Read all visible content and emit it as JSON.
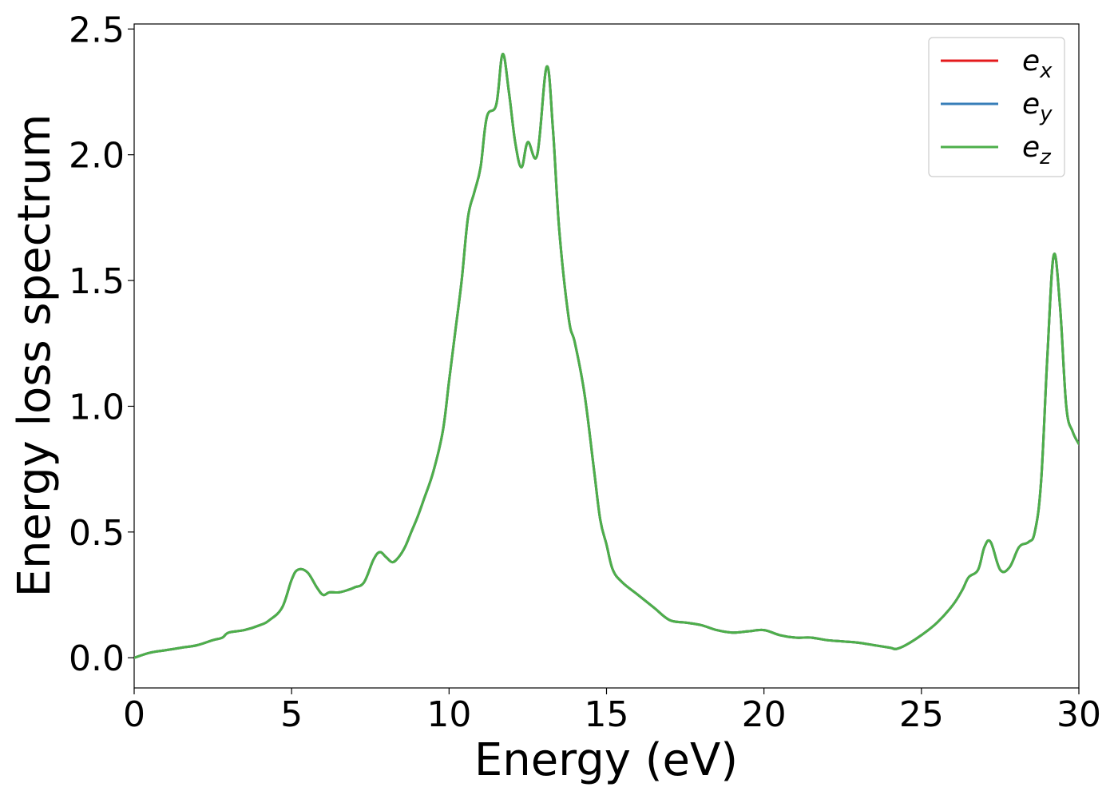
{
  "chart_data": {
    "type": "line",
    "title": "",
    "xlabel": "Energy (eV)",
    "ylabel": "Energy loss spectrum",
    "xlim": [
      0,
      30
    ],
    "ylim": [
      -0.12,
      2.52
    ],
    "xticks": [
      0,
      5,
      10,
      15,
      20,
      25,
      30
    ],
    "xtick_labels": [
      "0",
      "5",
      "10",
      "15",
      "20",
      "25",
      "30"
    ],
    "yticks": [
      0.0,
      0.5,
      1.0,
      1.5,
      2.0,
      2.5
    ],
    "ytick_labels": [
      "0.0",
      "0.5",
      "1.0",
      "1.5",
      "2.0",
      "2.5"
    ],
    "grid": false,
    "legend_position": "top-right",
    "x": [
      0,
      0.5,
      1,
      1.5,
      2,
      2.5,
      2.8,
      3,
      3.5,
      4,
      4.3,
      4.7,
      5,
      5.2,
      5.5,
      5.8,
      6,
      6.2,
      6.5,
      6.8,
      7,
      7.3,
      7.6,
      7.8,
      8,
      8.2,
      8.4,
      8.6,
      8.8,
      9,
      9.2,
      9.5,
      9.8,
      10,
      10.2,
      10.4,
      10.6,
      10.8,
      11,
      11.2,
      11.5,
      11.7,
      11.9,
      12.1,
      12.3,
      12.5,
      12.8,
      13.1,
      13.3,
      13.5,
      13.8,
      14,
      14.3,
      14.6,
      14.8,
      15,
      15.2,
      15.5,
      16,
      16.5,
      17,
      17.5,
      18,
      18.5,
      19,
      19.5,
      20,
      20.5,
      21,
      21.5,
      22,
      22.5,
      23,
      23.5,
      24,
      24.2,
      24.5,
      25,
      25.5,
      26,
      26.3,
      26.5,
      26.8,
      27,
      27.2,
      27.5,
      27.8,
      28.1,
      28.4,
      28.6,
      28.8,
      29,
      29.2,
      29.4,
      29.6,
      29.8,
      30
    ],
    "series": [
      {
        "name": "e_x",
        "color": "#e41a1c",
        "values": [
          0.0,
          0.02,
          0.03,
          0.04,
          0.05,
          0.07,
          0.08,
          0.1,
          0.11,
          0.13,
          0.15,
          0.2,
          0.31,
          0.35,
          0.34,
          0.28,
          0.25,
          0.26,
          0.26,
          0.27,
          0.28,
          0.3,
          0.39,
          0.42,
          0.4,
          0.38,
          0.4,
          0.44,
          0.5,
          0.56,
          0.63,
          0.74,
          0.9,
          1.1,
          1.3,
          1.5,
          1.75,
          1.85,
          1.95,
          2.15,
          2.2,
          2.4,
          2.25,
          2.05,
          1.95,
          2.05,
          2.0,
          2.35,
          2.1,
          1.7,
          1.35,
          1.25,
          1.05,
          0.75,
          0.55,
          0.45,
          0.35,
          0.3,
          0.25,
          0.2,
          0.15,
          0.14,
          0.13,
          0.11,
          0.1,
          0.105,
          0.11,
          0.09,
          0.08,
          0.08,
          0.07,
          0.065,
          0.06,
          0.05,
          0.04,
          0.035,
          0.05,
          0.09,
          0.14,
          0.21,
          0.27,
          0.32,
          0.35,
          0.44,
          0.46,
          0.35,
          0.36,
          0.44,
          0.46,
          0.5,
          0.7,
          1.2,
          1.6,
          1.4,
          1.0,
          0.9,
          0.85
        ]
      },
      {
        "name": "e_y",
        "color": "#377eb8",
        "values": [
          0.0,
          0.02,
          0.03,
          0.04,
          0.05,
          0.07,
          0.08,
          0.1,
          0.11,
          0.13,
          0.15,
          0.2,
          0.31,
          0.35,
          0.34,
          0.28,
          0.25,
          0.26,
          0.26,
          0.27,
          0.28,
          0.3,
          0.39,
          0.42,
          0.4,
          0.38,
          0.4,
          0.44,
          0.5,
          0.56,
          0.63,
          0.74,
          0.9,
          1.1,
          1.3,
          1.5,
          1.75,
          1.85,
          1.95,
          2.15,
          2.2,
          2.4,
          2.25,
          2.05,
          1.95,
          2.05,
          2.0,
          2.35,
          2.1,
          1.7,
          1.35,
          1.25,
          1.05,
          0.75,
          0.55,
          0.45,
          0.35,
          0.3,
          0.25,
          0.2,
          0.15,
          0.14,
          0.13,
          0.11,
          0.1,
          0.105,
          0.11,
          0.09,
          0.08,
          0.08,
          0.07,
          0.065,
          0.06,
          0.05,
          0.04,
          0.035,
          0.05,
          0.09,
          0.14,
          0.21,
          0.27,
          0.32,
          0.35,
          0.44,
          0.46,
          0.35,
          0.36,
          0.44,
          0.46,
          0.5,
          0.7,
          1.2,
          1.6,
          1.4,
          1.0,
          0.9,
          0.85
        ]
      },
      {
        "name": "e_z",
        "color": "#4daf4a",
        "values": [
          0.0,
          0.02,
          0.03,
          0.04,
          0.05,
          0.07,
          0.08,
          0.1,
          0.11,
          0.13,
          0.15,
          0.2,
          0.31,
          0.35,
          0.34,
          0.28,
          0.25,
          0.26,
          0.26,
          0.27,
          0.28,
          0.3,
          0.39,
          0.42,
          0.4,
          0.38,
          0.4,
          0.44,
          0.5,
          0.56,
          0.63,
          0.74,
          0.9,
          1.1,
          1.3,
          1.5,
          1.75,
          1.85,
          1.95,
          2.15,
          2.2,
          2.4,
          2.25,
          2.05,
          1.95,
          2.05,
          2.0,
          2.35,
          2.1,
          1.7,
          1.35,
          1.25,
          1.05,
          0.75,
          0.55,
          0.45,
          0.35,
          0.3,
          0.25,
          0.2,
          0.15,
          0.14,
          0.13,
          0.11,
          0.1,
          0.105,
          0.11,
          0.09,
          0.08,
          0.08,
          0.07,
          0.065,
          0.06,
          0.05,
          0.04,
          0.035,
          0.05,
          0.09,
          0.14,
          0.21,
          0.27,
          0.32,
          0.35,
          0.44,
          0.46,
          0.35,
          0.36,
          0.44,
          0.46,
          0.5,
          0.7,
          1.2,
          1.6,
          1.4,
          1.0,
          0.9,
          0.85
        ]
      }
    ],
    "legend": [
      {
        "base": "e",
        "sub": "x",
        "color": "#e41a1c"
      },
      {
        "base": "e",
        "sub": "y",
        "color": "#377eb8"
      },
      {
        "base": "e",
        "sub": "z",
        "color": "#4daf4a"
      }
    ]
  }
}
